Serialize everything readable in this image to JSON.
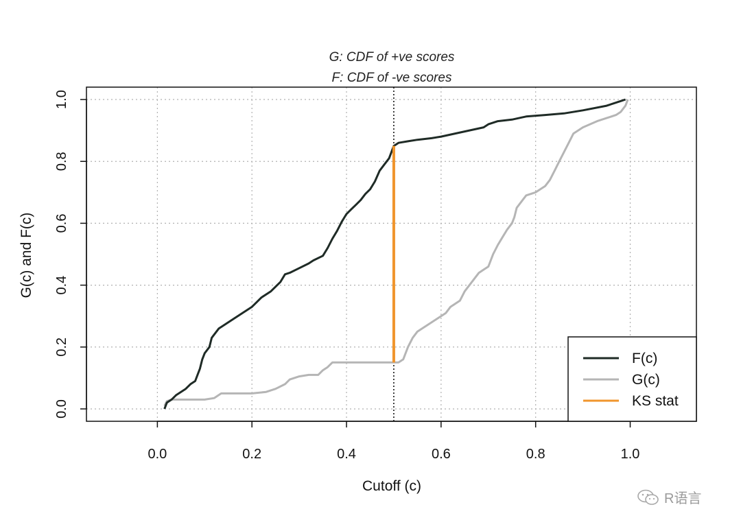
{
  "chart_data": {
    "type": "line",
    "title": "G: CDF of +ve scores",
    "subtitle": "F: CDF of -ve scores",
    "xlabel": "Cutoff (c)",
    "ylabel": "G(c) and F(c)",
    "xlim": [
      -0.15,
      1.14
    ],
    "ylim": [
      -0.04,
      1.04
    ],
    "x_ticks": [
      0.0,
      0.2,
      0.4,
      0.6,
      0.8,
      1.0
    ],
    "x_tick_labels": [
      "0.0",
      "0.2",
      "0.4",
      "0.6",
      "0.8",
      "1.0"
    ],
    "y_ticks": [
      0.0,
      0.2,
      0.4,
      0.6,
      0.8,
      1.0
    ],
    "y_tick_labels": [
      "0.0",
      "0.2",
      "0.4",
      "0.6",
      "0.8",
      "1.0"
    ],
    "grid": true,
    "cutoff": 0.5,
    "series": [
      {
        "name": "F(c)",
        "color": "#1f2b26",
        "width": 3,
        "points": [
          [
            0.015,
            0.0
          ],
          [
            0.02,
            0.02
          ],
          [
            0.03,
            0.03
          ],
          [
            0.04,
            0.045
          ],
          [
            0.05,
            0.055
          ],
          [
            0.06,
            0.065
          ],
          [
            0.07,
            0.08
          ],
          [
            0.08,
            0.09
          ],
          [
            0.085,
            0.11
          ],
          [
            0.09,
            0.13
          ],
          [
            0.095,
            0.16
          ],
          [
            0.1,
            0.18
          ],
          [
            0.11,
            0.2
          ],
          [
            0.115,
            0.23
          ],
          [
            0.12,
            0.24
          ],
          [
            0.13,
            0.26
          ],
          [
            0.14,
            0.27
          ],
          [
            0.16,
            0.29
          ],
          [
            0.18,
            0.31
          ],
          [
            0.2,
            0.33
          ],
          [
            0.21,
            0.345
          ],
          [
            0.22,
            0.36
          ],
          [
            0.24,
            0.38
          ],
          [
            0.25,
            0.395
          ],
          [
            0.26,
            0.41
          ],
          [
            0.27,
            0.435
          ],
          [
            0.28,
            0.44
          ],
          [
            0.3,
            0.455
          ],
          [
            0.32,
            0.47
          ],
          [
            0.33,
            0.48
          ],
          [
            0.35,
            0.495
          ],
          [
            0.36,
            0.52
          ],
          [
            0.37,
            0.55
          ],
          [
            0.38,
            0.575
          ],
          [
            0.39,
            0.605
          ],
          [
            0.4,
            0.63
          ],
          [
            0.41,
            0.645
          ],
          [
            0.42,
            0.66
          ],
          [
            0.43,
            0.675
          ],
          [
            0.44,
            0.695
          ],
          [
            0.45,
            0.71
          ],
          [
            0.46,
            0.735
          ],
          [
            0.47,
            0.77
          ],
          [
            0.48,
            0.79
          ],
          [
            0.49,
            0.81
          ],
          [
            0.495,
            0.83
          ],
          [
            0.5,
            0.85
          ],
          [
            0.51,
            0.86
          ],
          [
            0.53,
            0.865
          ],
          [
            0.55,
            0.87
          ],
          [
            0.58,
            0.875
          ],
          [
            0.6,
            0.88
          ],
          [
            0.63,
            0.89
          ],
          [
            0.66,
            0.9
          ],
          [
            0.69,
            0.91
          ],
          [
            0.7,
            0.92
          ],
          [
            0.72,
            0.93
          ],
          [
            0.75,
            0.935
          ],
          [
            0.78,
            0.945
          ],
          [
            0.82,
            0.95
          ],
          [
            0.86,
            0.955
          ],
          [
            0.9,
            0.965
          ],
          [
            0.95,
            0.98
          ],
          [
            0.98,
            0.995
          ],
          [
            0.99,
            1.0
          ]
        ]
      },
      {
        "name": "G(c)",
        "color": "#b5b5b5",
        "width": 3,
        "points": [
          [
            0.015,
            0.01
          ],
          [
            0.02,
            0.025
          ],
          [
            0.03,
            0.03
          ],
          [
            0.06,
            0.03
          ],
          [
            0.1,
            0.03
          ],
          [
            0.12,
            0.035
          ],
          [
            0.135,
            0.05
          ],
          [
            0.2,
            0.05
          ],
          [
            0.23,
            0.055
          ],
          [
            0.25,
            0.065
          ],
          [
            0.27,
            0.08
          ],
          [
            0.28,
            0.095
          ],
          [
            0.3,
            0.105
          ],
          [
            0.32,
            0.11
          ],
          [
            0.34,
            0.11
          ],
          [
            0.35,
            0.125
          ],
          [
            0.36,
            0.135
          ],
          [
            0.37,
            0.15
          ],
          [
            0.4,
            0.15
          ],
          [
            0.45,
            0.15
          ],
          [
            0.5,
            0.15
          ],
          [
            0.51,
            0.15
          ],
          [
            0.52,
            0.16
          ],
          [
            0.53,
            0.2
          ],
          [
            0.54,
            0.23
          ],
          [
            0.55,
            0.25
          ],
          [
            0.57,
            0.27
          ],
          [
            0.59,
            0.29
          ],
          [
            0.61,
            0.31
          ],
          [
            0.62,
            0.33
          ],
          [
            0.64,
            0.35
          ],
          [
            0.65,
            0.38
          ],
          [
            0.66,
            0.4
          ],
          [
            0.67,
            0.42
          ],
          [
            0.68,
            0.44
          ],
          [
            0.69,
            0.45
          ],
          [
            0.7,
            0.46
          ],
          [
            0.71,
            0.5
          ],
          [
            0.72,
            0.53
          ],
          [
            0.73,
            0.555
          ],
          [
            0.74,
            0.58
          ],
          [
            0.75,
            0.6
          ],
          [
            0.755,
            0.62
          ],
          [
            0.76,
            0.65
          ],
          [
            0.77,
            0.67
          ],
          [
            0.78,
            0.69
          ],
          [
            0.8,
            0.7
          ],
          [
            0.82,
            0.72
          ],
          [
            0.83,
            0.74
          ],
          [
            0.84,
            0.77
          ],
          [
            0.85,
            0.8
          ],
          [
            0.86,
            0.83
          ],
          [
            0.87,
            0.86
          ],
          [
            0.88,
            0.89
          ],
          [
            0.9,
            0.91
          ],
          [
            0.93,
            0.93
          ],
          [
            0.95,
            0.94
          ],
          [
            0.97,
            0.95
          ],
          [
            0.98,
            0.96
          ],
          [
            0.99,
            0.98
          ],
          [
            0.995,
            1.0
          ]
        ]
      }
    ],
    "ks_stat": {
      "name": "KS stat",
      "color": "#f0952d",
      "x": 0.5,
      "y_from": 0.15,
      "y_to": 0.85
    },
    "legend": {
      "position": "bottom-right",
      "entries": [
        {
          "label": "F(c)",
          "color": "#1f2b26"
        },
        {
          "label": "G(c)",
          "color": "#b5b5b5"
        },
        {
          "label": "KS stat",
          "color": "#f0952d"
        }
      ]
    }
  },
  "watermark": {
    "text": "R语言"
  }
}
